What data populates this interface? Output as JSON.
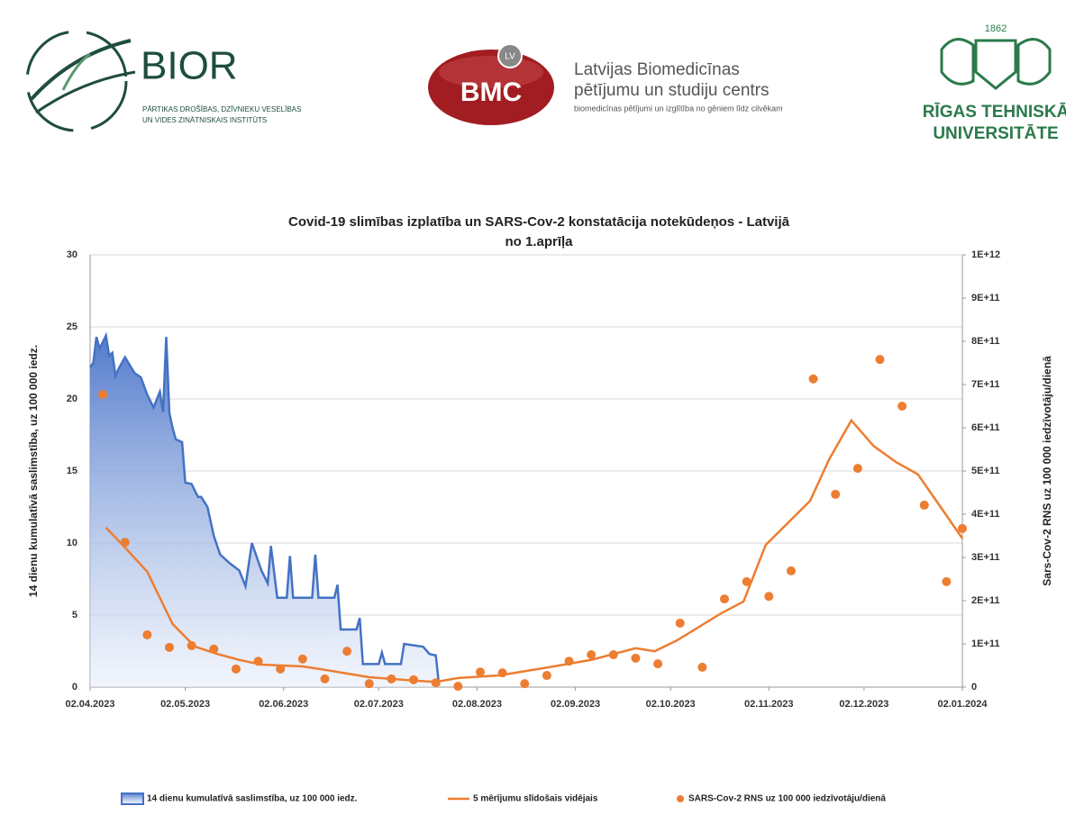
{
  "header": {
    "bior": {
      "name": "BIOR",
      "lines": [
        "PĀRTIKAS DROŠĪBAS, DZĪVNIEKU VESELĪBAS",
        "UN VIDES ZINĀTNISKAIS INSTITŪTS"
      ]
    },
    "bmc": {
      "badge": "LV",
      "name": "BMC",
      "lines": [
        "Latvijas Biomedicīnas",
        "pētījumu un studiju centrs",
        "biomedicīnas pētījumi un izglītība no gēniem līdz cilvēkam"
      ]
    },
    "rtu": {
      "year": "1862",
      "lines": [
        "RĪGAS TEHNISKĀ",
        "UNIVERSITĀTE"
      ]
    }
  },
  "chart_data": {
    "type": "combo",
    "title": [
      "Covid-19 slimības izplatība un SARS-Cov-2 konstatācija notekūdeņos - Latvijā",
      "no 1.aprīļa"
    ],
    "ylabel": "14 dienu kumulatīvā saslimstība, uz 100 000 iedz.",
    "y2label": "Sars-Cov-2 RNS uz 100 000 iedzīvotāju/dienā",
    "xlim": [
      "2023-04-02",
      "2024-01-02"
    ],
    "xticks": [
      {
        "value": "2023-04-02",
        "label": "02.04.2023"
      },
      {
        "value": "2023-05-02",
        "label": "02.05.2023"
      },
      {
        "value": "2023-06-02",
        "label": "02.06.2023"
      },
      {
        "value": "2023-07-02",
        "label": "02.07.2023"
      },
      {
        "value": "2023-08-02",
        "label": "02.08.2023"
      },
      {
        "value": "2023-09-02",
        "label": "02.09.2023"
      },
      {
        "value": "2023-10-02",
        "label": "02.10.2023"
      },
      {
        "value": "2023-11-02",
        "label": "02.11.2023"
      },
      {
        "value": "2023-12-02",
        "label": "02.12.2023"
      },
      {
        "value": "2024-01-02",
        "label": "02.01.2024"
      }
    ],
    "ylim": [
      0,
      30
    ],
    "yticks": [
      0,
      5,
      10,
      15,
      20,
      25,
      30
    ],
    "y2lim": [
      0,
      1000000000000
    ],
    "y2ticks": [
      0,
      {
        "value": 100000000000,
        "label": "1E+11"
      },
      {
        "value": 200000000000,
        "label": "2E+11"
      },
      {
        "value": 300000000000,
        "label": "3E+11"
      },
      {
        "value": 400000000000,
        "label": "4E+11"
      },
      {
        "value": 500000000000,
        "label": "5E+11"
      },
      {
        "value": 600000000000,
        "label": "6E+11"
      },
      {
        "value": 700000000000,
        "label": "7E+11"
      },
      {
        "value": 800000000000,
        "label": "8E+11"
      },
      {
        "value": 900000000000,
        "label": "9E+11"
      },
      {
        "value": 1000000000000,
        "label": "1E+12"
      }
    ],
    "grid": true,
    "legend": "bottom",
    "series": [
      {
        "name": "14 dienu kumulatīvā saslimstība, uz 100 000 iedz.",
        "type": "area",
        "color": "#4472c4",
        "axis": "y",
        "x": [
          "2023-04-02",
          "2023-04-03",
          "2023-04-04",
          "2023-04-05",
          "2023-04-07",
          "2023-04-08",
          "2023-04-09",
          "2023-04-10",
          "2023-04-11",
          "2023-04-13",
          "2023-04-16",
          "2023-04-18",
          "2023-04-20",
          "2023-04-22",
          "2023-04-24",
          "2023-04-25",
          "2023-04-26",
          "2023-04-27",
          "2023-04-28",
          "2023-04-29",
          "2023-05-01",
          "2023-05-02",
          "2023-05-04",
          "2023-05-06",
          "2023-05-07",
          "2023-05-09",
          "2023-05-11",
          "2023-05-13",
          "2023-05-16",
          "2023-05-19",
          "2023-05-21",
          "2023-05-23",
          "2023-05-26",
          "2023-05-28",
          "2023-05-29",
          "2023-05-31",
          "2023-06-03",
          "2023-06-04",
          "2023-06-05",
          "2023-06-11",
          "2023-06-12",
          "2023-06-13",
          "2023-06-18",
          "2023-06-19",
          "2023-06-20",
          "2023-06-25",
          "2023-06-26",
          "2023-06-27",
          "2023-07-02",
          "2023-07-03",
          "2023-07-04",
          "2023-07-09",
          "2023-07-10",
          "2023-07-16",
          "2023-07-18",
          "2023-07-20",
          "2023-07-21"
        ],
        "values": [
          22.2,
          22.5,
          24.3,
          23.5,
          24.4,
          23,
          23.2,
          21.6,
          22.1,
          22.9,
          21.8,
          21.5,
          20.3,
          19.4,
          20.5,
          19.1,
          24.3,
          19,
          18,
          17.2,
          17,
          14.2,
          14.1,
          13.2,
          13.2,
          12.5,
          10.5,
          9.2,
          8.6,
          8.1,
          7,
          10,
          8.1,
          7.2,
          9.8,
          6.2,
          6.2,
          9.1,
          6.2,
          6.2,
          9.2,
          6.2,
          6.2,
          7.1,
          4,
          4,
          4.8,
          1.6,
          1.6,
          2.4,
          1.6,
          1.6,
          3,
          2.8,
          2.3,
          2.2,
          0.1
        ]
      },
      {
        "name": "5 mērījumu slīdošais vidējais",
        "type": "line",
        "color": "#ed7d31",
        "axis": "y2",
        "x": [
          "2023-04-07",
          "2023-04-13",
          "2023-04-20",
          "2023-04-28",
          "2023-05-05",
          "2023-05-12",
          "2023-05-19",
          "2023-05-26",
          "2023-06-08",
          "2023-06-15",
          "2023-06-29",
          "2023-07-13",
          "2023-07-20",
          "2023-07-27",
          "2023-08-09",
          "2023-08-23",
          "2023-09-07",
          "2023-09-21",
          "2023-09-27",
          "2023-10-04",
          "2023-10-18",
          "2023-10-25",
          "2023-11-01",
          "2023-11-15",
          "2023-11-21",
          "2023-11-28",
          "2023-12-05",
          "2023-12-12",
          "2023-12-19",
          "2024-01-02"
        ],
        "values": [
          369000000000,
          323000000000,
          267000000000,
          146000000000,
          94000000000,
          77000000000,
          63000000000,
          52000000000,
          48000000000,
          40000000000,
          23000000000,
          15000000000,
          12000000000,
          21000000000,
          27000000000,
          44000000000,
          63000000000,
          90000000000,
          83000000000,
          108000000000,
          171000000000,
          198000000000,
          329000000000,
          431000000000,
          527000000000,
          617000000000,
          558000000000,
          521000000000,
          492000000000,
          344000000000
        ]
      },
      {
        "name": "SARS-Cov-2 RNS uz 100 000 iedzīvotāju/dienā",
        "type": "scatter",
        "color": "#ed7d31",
        "axis": "y2",
        "x": [
          "2023-04-06",
          "2023-04-13",
          "2023-04-20",
          "2023-04-27",
          "2023-05-04",
          "2023-05-11",
          "2023-05-18",
          "2023-05-25",
          "2023-06-01",
          "2023-06-08",
          "2023-06-15",
          "2023-06-22",
          "2023-06-29",
          "2023-07-06",
          "2023-07-13",
          "2023-07-20",
          "2023-07-27",
          "2023-08-03",
          "2023-08-10",
          "2023-08-17",
          "2023-08-24",
          "2023-08-31",
          "2023-09-07",
          "2023-09-14",
          "2023-09-21",
          "2023-09-28",
          "2023-10-05",
          "2023-10-12",
          "2023-10-19",
          "2023-10-26",
          "2023-11-02",
          "2023-11-09",
          "2023-11-16",
          "2023-11-23",
          "2023-11-30",
          "2023-12-07",
          "2023-12-14",
          "2023-12-21",
          "2023-12-28",
          "2024-01-02"
        ],
        "values": [
          677000000000,
          335000000000,
          121000000000,
          92000000000,
          96000000000,
          88000000000,
          42000000000,
          60000000000,
          42000000000,
          65000000000,
          19000000000,
          83000000000,
          8000000000,
          19000000000,
          17000000000,
          10000000000,
          2000000000,
          35000000000,
          33000000000,
          8000000000,
          27000000000,
          60000000000,
          75000000000,
          75000000000,
          67000000000,
          54000000000,
          148000000000,
          46000000000,
          204000000000,
          244000000000,
          210000000000,
          269000000000,
          713000000000,
          446000000000,
          506000000000,
          758000000000,
          650000000000,
          421000000000,
          244000000000,
          367000000000
        ]
      }
    ]
  }
}
